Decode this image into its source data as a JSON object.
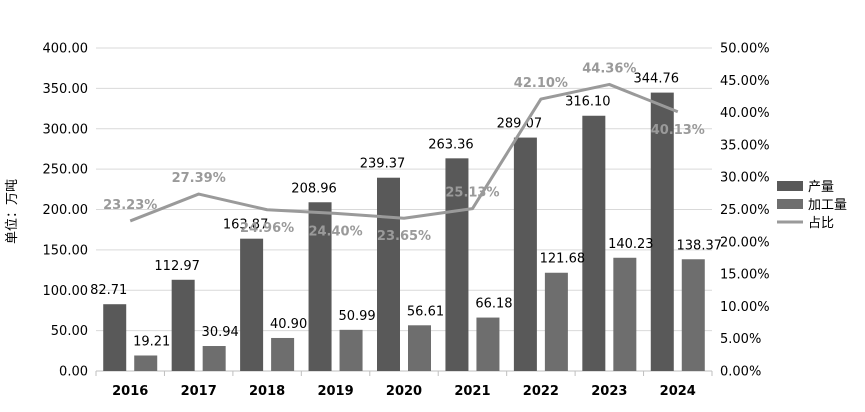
{
  "chart_data": {
    "type": "bar",
    "categories": [
      "2016",
      "2017",
      "2018",
      "2019",
      "2020",
      "2021",
      "2022",
      "2023",
      "2024"
    ],
    "series": [
      {
        "name": "产量",
        "type": "bar",
        "axis": "left",
        "color": "#595959",
        "values": [
          82.71,
          112.97,
          163.87,
          208.96,
          239.37,
          263.36,
          289.07,
          316.1,
          344.76
        ],
        "labels": [
          "82.71",
          "112.97",
          "163.87",
          "208.96",
          "239.37",
          "263.36",
          "289.07",
          "316.10",
          "344.76"
        ]
      },
      {
        "name": "加工量",
        "type": "bar",
        "axis": "left",
        "color": "#6e6e6e",
        "values": [
          19.21,
          30.94,
          40.9,
          50.99,
          56.61,
          66.18,
          121.68,
          140.23,
          138.37
        ],
        "labels": [
          "19.21",
          "30.94",
          "40.90",
          "50.99",
          "56.61",
          "66.18",
          "121.68",
          "140.23",
          "138.37"
        ]
      },
      {
        "name": "占比",
        "type": "line",
        "axis": "right",
        "color": "#9a9a9a",
        "values": [
          23.23,
          27.39,
          24.96,
          24.4,
          23.65,
          25.13,
          42.1,
          44.36,
          40.13
        ],
        "labels": [
          "23.23%",
          "27.39%",
          "24.96%",
          "24.40%",
          "23.65%",
          "25.13%",
          "42.10%",
          "44.36%",
          "40.13%"
        ]
      }
    ],
    "ylabel": "单位：万吨",
    "ylim": [
      0,
      400
    ],
    "yticks": [
      "0.00",
      "50.00",
      "100.00",
      "150.00",
      "200.00",
      "250.00",
      "300.00",
      "350.00",
      "400.00"
    ],
    "y2lim": [
      0,
      50
    ],
    "y2ticks": [
      "0.00%",
      "5.00%",
      "10.00%",
      "15.00%",
      "20.00%",
      "25.00%",
      "30.00%",
      "35.00%",
      "40.00%",
      "45.00%",
      "50.00%"
    ],
    "grid": true,
    "legend": "right"
  }
}
